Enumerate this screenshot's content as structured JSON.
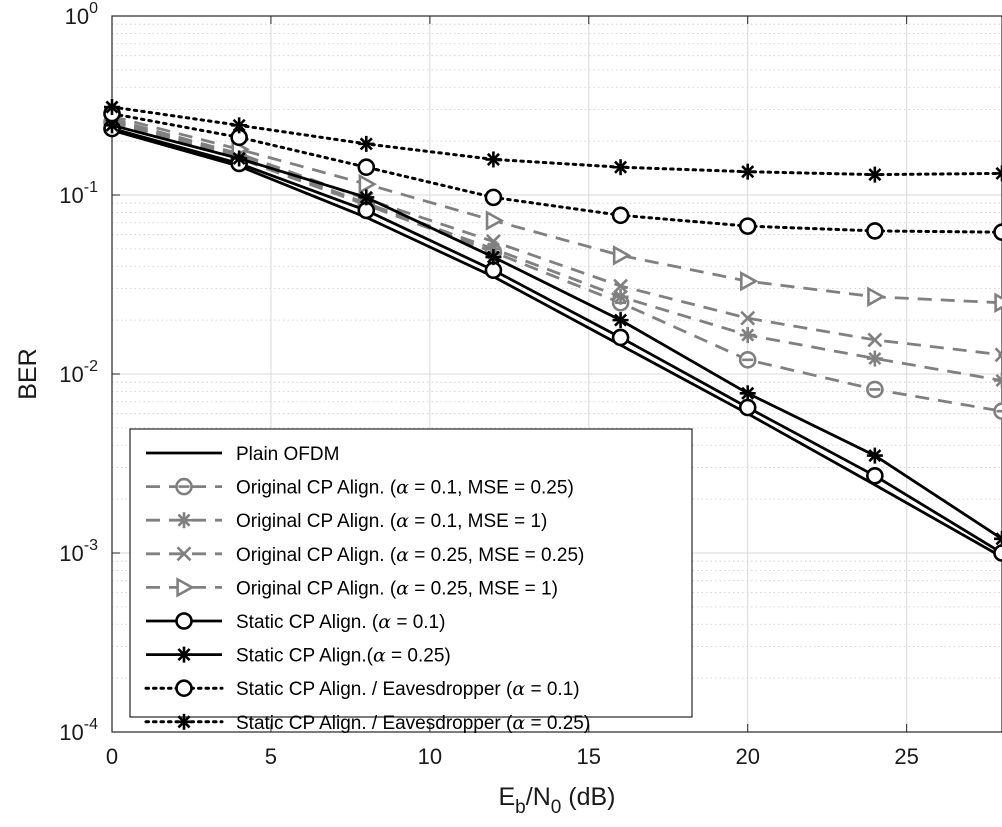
{
  "chart_data": {
    "type": "line",
    "title": "",
    "xlabel": "E_b/N_0 (dB)",
    "ylabel": "BER",
    "x_scale": "linear",
    "y_scale": "log",
    "xlim": [
      0,
      28
    ],
    "ylim": [
      0.0001,
      1
    ],
    "grid": true,
    "minor_grid": true,
    "legend_position": "bottom-left",
    "x_ticks": [
      "0",
      "5",
      "10",
      "15",
      "20",
      "25"
    ],
    "y_ticks": [
      {
        "base": "10",
        "exp": "-4"
      },
      {
        "base": "10",
        "exp": "-3"
      },
      {
        "base": "10",
        "exp": "-2"
      },
      {
        "base": "10",
        "exp": "-1"
      },
      {
        "base": "10",
        "exp": "0"
      }
    ],
    "x": [
      0,
      4,
      8,
      12,
      16,
      20,
      24,
      28
    ],
    "series": [
      {
        "name": "Plain OFDM",
        "color": "#000000",
        "dash": "solid",
        "marker": "none",
        "values": [
          0.23,
          0.145,
          0.075,
          0.035,
          0.0145,
          0.006,
          0.0024,
          0.00095
        ]
      },
      {
        "name": "Original CP Align. (α = 0.1, MSE = 0.25)",
        "color": "#808080",
        "dash": "dashed",
        "marker": "circle-bar",
        "values": [
          0.255,
          0.16,
          0.088,
          0.048,
          0.025,
          0.012,
          0.0082,
          0.0062
        ]
      },
      {
        "name": "Original CP Align. (α = 0.1, MSE = 1)",
        "color": "#808080",
        "dash": "dashed",
        "marker": "asterisk",
        "values": [
          0.26,
          0.165,
          0.09,
          0.05,
          0.027,
          0.0165,
          0.0122,
          0.0092
        ]
      },
      {
        "name": "Original CP Align. (α = 0.25, MSE = 0.25)",
        "color": "#808080",
        "dash": "dashed",
        "marker": "x",
        "values": [
          0.265,
          0.17,
          0.095,
          0.055,
          0.031,
          0.0205,
          0.0155,
          0.0128
        ]
      },
      {
        "name": "Original CP Align. (α = 0.25, MSE = 1)",
        "color": "#808080",
        "dash": "dashed",
        "marker": "triangle-right",
        "values": [
          0.275,
          0.18,
          0.115,
          0.072,
          0.046,
          0.033,
          0.027,
          0.025
        ]
      },
      {
        "name": "Static CP Align. (α = 0.1)",
        "color": "#000000",
        "dash": "solid",
        "marker": "circle",
        "values": [
          0.235,
          0.15,
          0.082,
          0.038,
          0.016,
          0.0065,
          0.0027,
          0.001
        ]
      },
      {
        "name": "Static CP Align.(α = 0.25)",
        "color": "#000000",
        "dash": "solid",
        "marker": "asterisk",
        "values": [
          0.245,
          0.16,
          0.097,
          0.045,
          0.02,
          0.0078,
          0.0035,
          0.0012
        ]
      },
      {
        "name": "Static CP Align. / Eavesdropper (α = 0.1)",
        "color": "#000000",
        "dash": "dotted",
        "marker": "circle",
        "values": [
          0.285,
          0.21,
          0.143,
          0.097,
          0.077,
          0.067,
          0.063,
          0.062
        ]
      },
      {
        "name": "Static CP Align. / Eavesdropper (α = 0.25)",
        "color": "#000000",
        "dash": "dotted",
        "marker": "asterisk",
        "values": [
          0.31,
          0.245,
          0.193,
          0.158,
          0.143,
          0.135,
          0.13,
          0.132
        ]
      }
    ]
  }
}
